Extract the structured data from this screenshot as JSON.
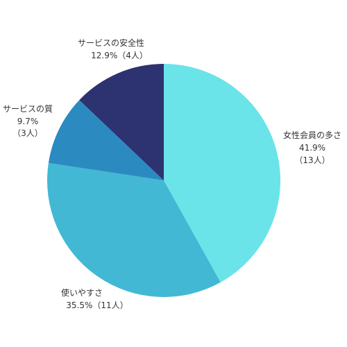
{
  "chart_data": {
    "type": "pie",
    "categories": [
      "女性会員の多さ",
      "使いやすさ",
      "サービスの質",
      "サービスの安全性"
    ],
    "values": [
      41.9,
      35.5,
      9.7,
      12.9
    ],
    "value_labels": [
      "41.9%",
      "35.5%",
      "9.7%",
      "12.9%"
    ],
    "count_labels": [
      "（13人）",
      "（11人）",
      "（3人）",
      "（4人）"
    ],
    "colors": [
      "#6ae4e8",
      "#42b8d4",
      "#2b8ac0",
      "#2d3270"
    ]
  }
}
